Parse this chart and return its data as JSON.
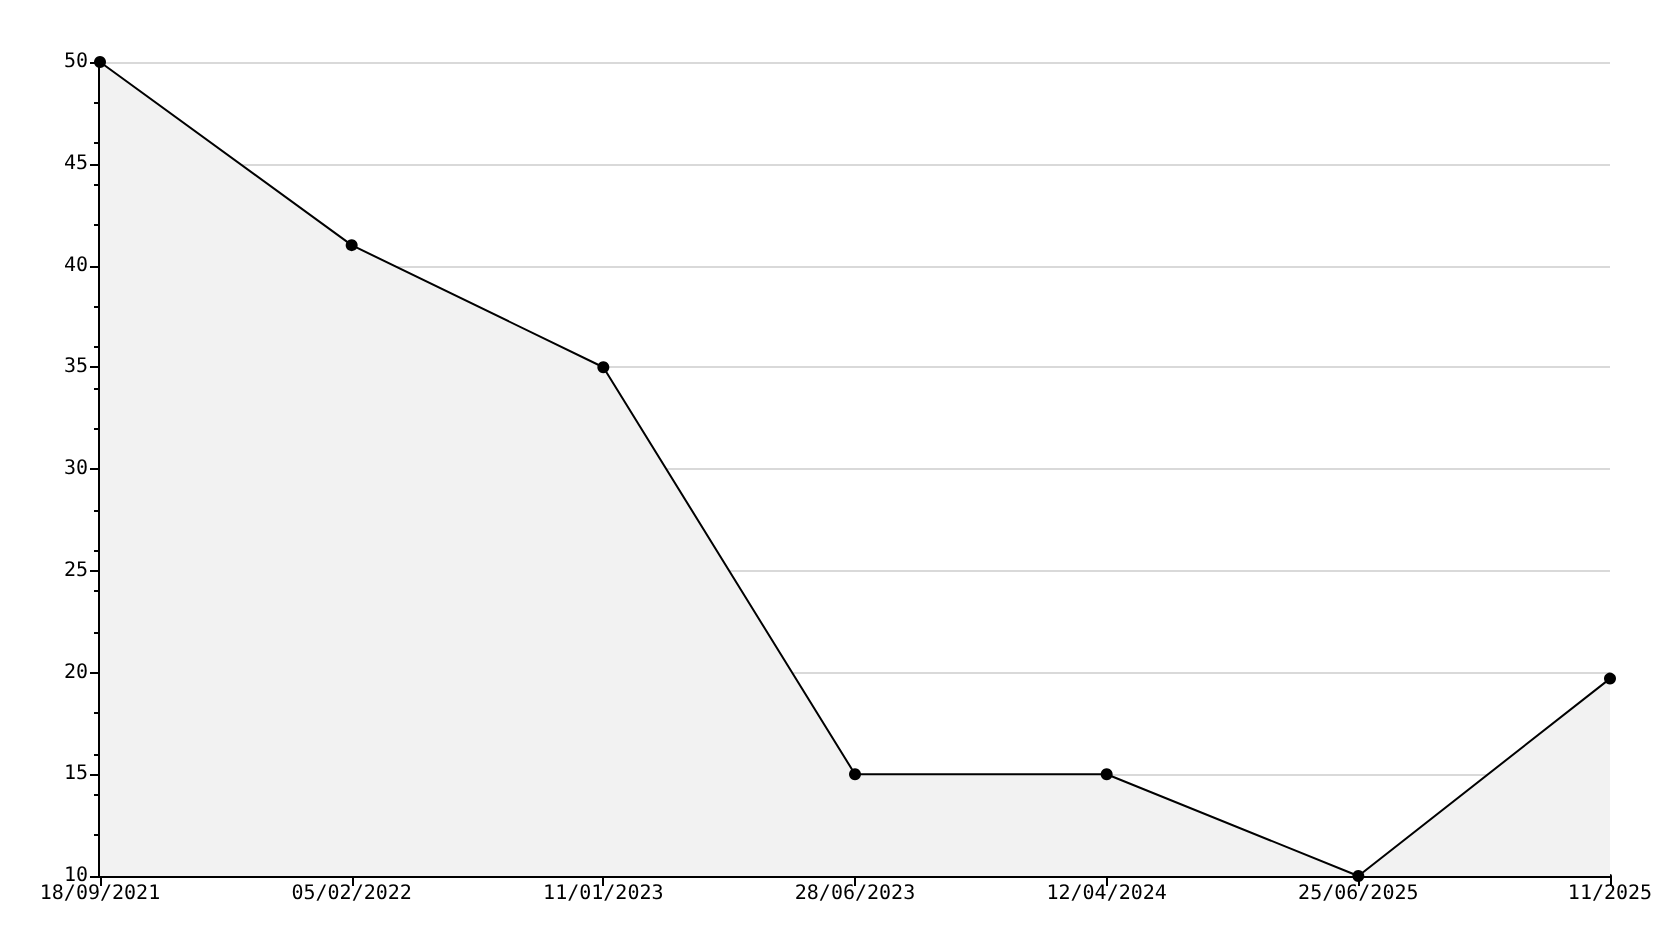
{
  "chart_data": {
    "type": "area",
    "categories": [
      "18/09/2021",
      "05/02/2022",
      "11/01/2023",
      "28/06/2023",
      "12/04/2024",
      "25/06/2025",
      "11/2025"
    ],
    "series": [
      {
        "color": "#000000",
        "values": [
          50,
          41,
          35,
          15,
          15,
          10,
          19.7
        ]
      }
    ],
    "ylim": [
      10,
      50
    ],
    "yticks": [
      10,
      15,
      20,
      25,
      30,
      35,
      40,
      45,
      50
    ],
    "grid": "y",
    "marker": "circle",
    "line_style": "solid"
  }
}
